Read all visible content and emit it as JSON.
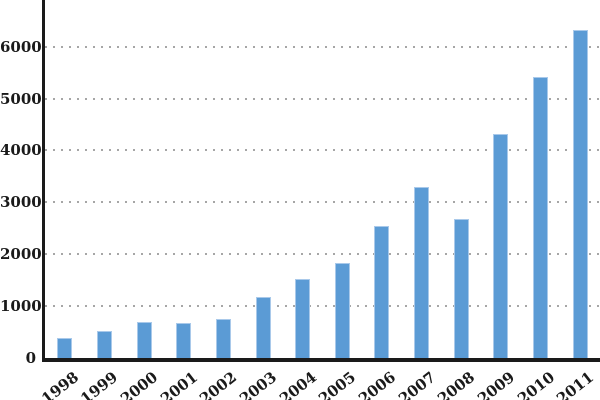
{
  "chart_data": {
    "type": "bar",
    "title": "",
    "xlabel": "",
    "ylabel": "",
    "categories": [
      "1998",
      "1999",
      "2000",
      "2001",
      "2002",
      "2003",
      "2004",
      "2005",
      "2006",
      "2007",
      "2008",
      "2009",
      "2010",
      "2011"
    ],
    "values": [
      390,
      530,
      700,
      670,
      760,
      1180,
      1520,
      1840,
      2540,
      3300,
      2670,
      4320,
      5410,
      6330
    ],
    "yticks": [
      0,
      1000,
      2000,
      3000,
      4000,
      5000,
      6000
    ],
    "ylim": [
      0,
      6900
    ],
    "grid": "horizontal-dotted",
    "legend_position": "none",
    "colors": {
      "bar_fill": "#5b9bd5",
      "bar_border": "#a9c9ea",
      "axis": "#1a1a1a",
      "gridline": "#a6a6a6",
      "tick_text": "#1a1a1a",
      "background": "#ffffff"
    }
  }
}
